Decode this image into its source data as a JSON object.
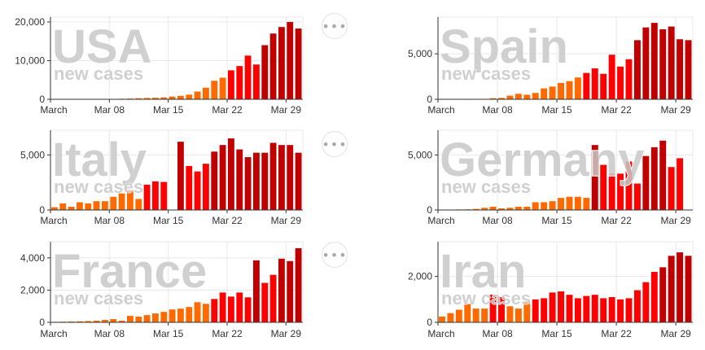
{
  "x_tick_labels": [
    "March",
    "Mar 08",
    "Mar 15",
    "Mar 22",
    "Mar 29"
  ],
  "more_icon": "more-horizontal-icon",
  "colors": {
    "early": "#ff6a00",
    "mid": "#ff0000",
    "late": "#c00000",
    "grid": "#e8e8e8",
    "axis": "#333333"
  },
  "chart_data": [
    {
      "type": "bar",
      "title": "USA",
      "subtitle": "new cases",
      "x": [
        "2020-03-01",
        "2020-03-02",
        "2020-03-03",
        "2020-03-04",
        "2020-03-05",
        "2020-03-06",
        "2020-03-07",
        "2020-03-08",
        "2020-03-09",
        "2020-03-10",
        "2020-03-11",
        "2020-03-12",
        "2020-03-13",
        "2020-03-14",
        "2020-03-15",
        "2020-03-16",
        "2020-03-17",
        "2020-03-18",
        "2020-03-19",
        "2020-03-20",
        "2020-03-21",
        "2020-03-22",
        "2020-03-23",
        "2020-03-24",
        "2020-03-25",
        "2020-03-26",
        "2020-03-27",
        "2020-03-28",
        "2020-03-29",
        "2020-03-30"
      ],
      "values": [
        5,
        15,
        20,
        30,
        40,
        50,
        80,
        100,
        150,
        200,
        280,
        350,
        400,
        500,
        700,
        900,
        1200,
        2000,
        3000,
        4800,
        5600,
        7500,
        8600,
        11300,
        9000,
        14000,
        17000,
        18700,
        20000,
        18300
      ],
      "ylim": [
        0,
        20000
      ],
      "yticks": [
        0,
        10000,
        20000
      ],
      "ytick_labels": [
        "0",
        "10,000",
        "20,000"
      ],
      "xticks": [
        "2020-03-01",
        "2020-03-08",
        "2020-03-15",
        "2020-03-22",
        "2020-03-29"
      ]
    },
    {
      "type": "bar",
      "title": "Spain",
      "subtitle": "new cases",
      "x": [
        "2020-03-01",
        "2020-03-02",
        "2020-03-03",
        "2020-03-04",
        "2020-03-05",
        "2020-03-06",
        "2020-03-07",
        "2020-03-08",
        "2020-03-09",
        "2020-03-10",
        "2020-03-11",
        "2020-03-12",
        "2020-03-13",
        "2020-03-14",
        "2020-03-15",
        "2020-03-16",
        "2020-03-17",
        "2020-03-18",
        "2020-03-19",
        "2020-03-20",
        "2020-03-21",
        "2020-03-22",
        "2020-03-23",
        "2020-03-24",
        "2020-03-25",
        "2020-03-26",
        "2020-03-27",
        "2020-03-28",
        "2020-03-29",
        "2020-03-30"
      ],
      "values": [
        20,
        20,
        40,
        50,
        40,
        50,
        120,
        150,
        400,
        600,
        500,
        700,
        1200,
        1400,
        1800,
        2000,
        2400,
        2900,
        3400,
        2800,
        4900,
        3600,
        4400,
        6500,
        7900,
        8400,
        7700,
        8000,
        6600,
        6500
      ],
      "ylim": [
        0,
        8500
      ],
      "yticks": [
        0,
        5000
      ],
      "ytick_labels": [
        "0",
        "5,000"
      ],
      "xticks": [
        "2020-03-01",
        "2020-03-08",
        "2020-03-15",
        "2020-03-22",
        "2020-03-29"
      ]
    },
    {
      "type": "bar",
      "title": "Italy",
      "subtitle": "new cases",
      "x": [
        "2020-03-01",
        "2020-03-02",
        "2020-03-03",
        "2020-03-04",
        "2020-03-05",
        "2020-03-06",
        "2020-03-07",
        "2020-03-08",
        "2020-03-09",
        "2020-03-10",
        "2020-03-11",
        "2020-03-12",
        "2020-03-13",
        "2020-03-14",
        "2020-03-15",
        "2020-03-16",
        "2020-03-17",
        "2020-03-18",
        "2020-03-19",
        "2020-03-20",
        "2020-03-21",
        "2020-03-22",
        "2020-03-23",
        "2020-03-24",
        "2020-03-25",
        "2020-03-26",
        "2020-03-27",
        "2020-03-28",
        "2020-03-29",
        "2020-03-30"
      ],
      "values": [
        250,
        600,
        300,
        700,
        600,
        800,
        800,
        1200,
        1500,
        1800,
        1000,
        2300,
        2600,
        2550,
        0,
        6200,
        4000,
        3500,
        4200,
        5300,
        5900,
        6500,
        5500,
        4800,
        5200,
        5200,
        6100,
        5900,
        5900,
        5200
      ],
      "ylim": [
        0,
        6800
      ],
      "yticks": [
        0,
        5000
      ],
      "ytick_labels": [
        "0",
        "5,000"
      ],
      "xticks": [
        "2020-03-01",
        "2020-03-08",
        "2020-03-15",
        "2020-03-22",
        "2020-03-29"
      ]
    },
    {
      "type": "bar",
      "title": "Germany",
      "subtitle": "new cases",
      "x": [
        "2020-03-01",
        "2020-03-02",
        "2020-03-03",
        "2020-03-04",
        "2020-03-05",
        "2020-03-06",
        "2020-03-07",
        "2020-03-08",
        "2020-03-09",
        "2020-03-10",
        "2020-03-11",
        "2020-03-12",
        "2020-03-13",
        "2020-03-14",
        "2020-03-15",
        "2020-03-16",
        "2020-03-17",
        "2020-03-18",
        "2020-03-19",
        "2020-03-20",
        "2020-03-21",
        "2020-03-22",
        "2020-03-23",
        "2020-03-24",
        "2020-03-25",
        "2020-03-26",
        "2020-03-27",
        "2020-03-28",
        "2020-03-29",
        "2020-03-30"
      ],
      "values": [
        20,
        30,
        50,
        60,
        100,
        200,
        300,
        150,
        200,
        300,
        300,
        700,
        700,
        800,
        1100,
        1200,
        1200,
        1100,
        5900,
        4100,
        3300,
        3300,
        4400,
        2400,
        4900,
        5700,
        6300,
        3900,
        4700,
        0
      ],
      "ylim": [
        0,
        6800
      ],
      "yticks": [
        0,
        5000
      ],
      "ytick_labels": [
        "0",
        "5,000"
      ],
      "xticks": [
        "2020-03-01",
        "2020-03-08",
        "2020-03-15",
        "2020-03-22",
        "2020-03-29"
      ]
    },
    {
      "type": "bar",
      "title": "France",
      "subtitle": "new cases",
      "x": [
        "2020-03-01",
        "2020-03-02",
        "2020-03-03",
        "2020-03-04",
        "2020-03-05",
        "2020-03-06",
        "2020-03-07",
        "2020-03-08",
        "2020-03-09",
        "2020-03-10",
        "2020-03-11",
        "2020-03-12",
        "2020-03-13",
        "2020-03-14",
        "2020-03-15",
        "2020-03-16",
        "2020-03-17",
        "2020-03-18",
        "2020-03-19",
        "2020-03-20",
        "2020-03-21",
        "2020-03-22",
        "2020-03-23",
        "2020-03-24",
        "2020-03-25",
        "2020-03-26",
        "2020-03-27",
        "2020-03-28",
        "2020-03-29",
        "2020-03-30"
      ],
      "values": [
        30,
        40,
        50,
        60,
        80,
        100,
        150,
        200,
        100,
        400,
        350,
        450,
        550,
        650,
        800,
        850,
        950,
        1250,
        1150,
        1450,
        1850,
        1600,
        1850,
        1550,
        3850,
        2450,
        2950,
        3950,
        3800,
        4600
      ],
      "ylim": [
        0,
        4700
      ],
      "yticks": [
        0,
        2000,
        4000
      ],
      "ytick_labels": [
        "0",
        "2,000",
        "4,000"
      ],
      "xticks": [
        "2020-03-01",
        "2020-03-08",
        "2020-03-15",
        "2020-03-22",
        "2020-03-29"
      ],
      "extra": {
        "x": "2020-03-30",
        "value": 2600
      }
    },
    {
      "type": "bar",
      "title": "Iran",
      "subtitle": "new cases",
      "x": [
        "2020-03-01",
        "2020-03-02",
        "2020-03-03",
        "2020-03-04",
        "2020-03-05",
        "2020-03-06",
        "2020-03-07",
        "2020-03-08",
        "2020-03-09",
        "2020-03-10",
        "2020-03-11",
        "2020-03-12",
        "2020-03-13",
        "2020-03-14",
        "2020-03-15",
        "2020-03-16",
        "2020-03-17",
        "2020-03-18",
        "2020-03-19",
        "2020-03-20",
        "2020-03-21",
        "2020-03-22",
        "2020-03-23",
        "2020-03-24",
        "2020-03-25",
        "2020-03-26",
        "2020-03-27",
        "2020-03-28",
        "2020-03-29",
        "2020-03-30"
      ],
      "values": [
        250,
        400,
        550,
        800,
        600,
        600,
        1200,
        1100,
        700,
        600,
        900,
        1000,
        1050,
        1300,
        1350,
        1200,
        1050,
        1150,
        1200,
        1050,
        1100,
        1000,
        1050,
        1400,
        1750,
        2200,
        2400,
        2900,
        3050,
        2900
      ],
      "ylim": [
        0,
        3300
      ],
      "yticks": [
        0,
        2000
      ],
      "ytick_labels": [
        "0",
        "2,000"
      ],
      "xticks": [
        "2020-03-01",
        "2020-03-08",
        "2020-03-15",
        "2020-03-22",
        "2020-03-29"
      ]
    }
  ]
}
